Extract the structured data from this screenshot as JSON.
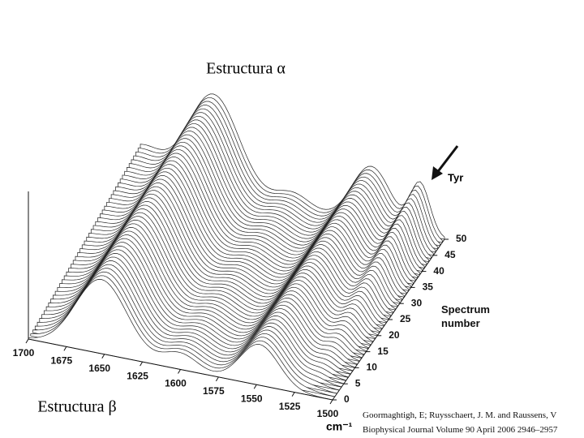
{
  "chart_data": {
    "type": "waterfall3d",
    "xlabel": "cm⁻¹",
    "ylabel": "Spectrum number",
    "xlim": [
      1700,
      1500
    ],
    "xticks": [
      1700,
      1675,
      1650,
      1625,
      1600,
      1575,
      1550,
      1525,
      1500
    ],
    "ylim": [
      0,
      50
    ],
    "yticks": [
      0,
      5,
      10,
      15,
      20,
      25,
      30,
      35,
      40,
      45,
      50
    ],
    "annotations": [
      "Estructura α",
      "Estructura β",
      "Tyr"
    ]
  },
  "citation": [
    "Goormaghtigh, E; Ruysschaert, J. M. and Raussens, V",
    "Biophysical Journal Volume 90 April 2006 2946–2957"
  ]
}
